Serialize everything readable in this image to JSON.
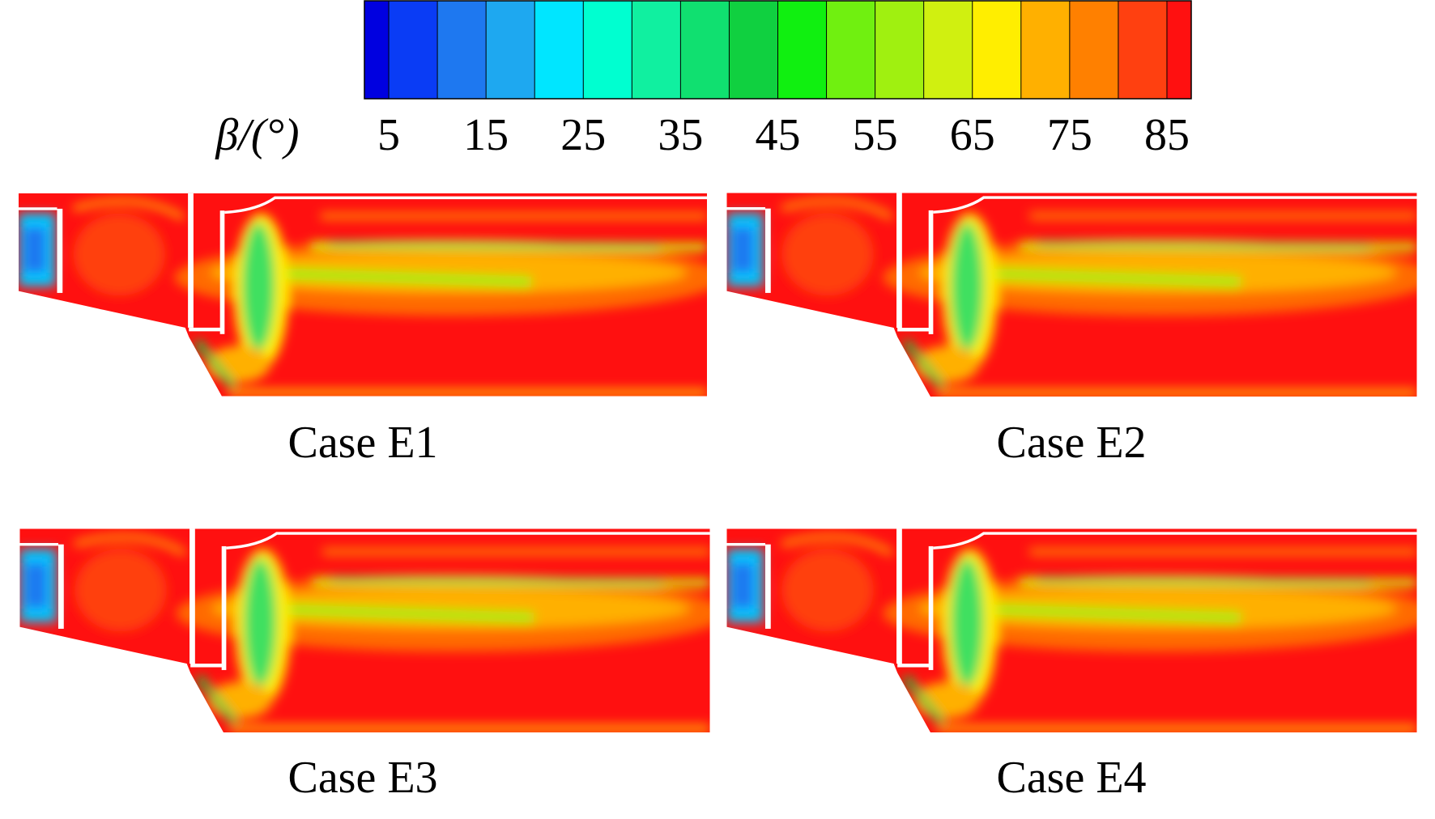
{
  "colorbar": {
    "label": "β/(°)",
    "lim": [
      2.5,
      87.5
    ],
    "ticks": [
      5,
      15,
      25,
      35,
      45,
      55,
      65,
      75,
      85
    ],
    "levels": [
      5,
      10,
      15,
      20,
      25,
      30,
      35,
      40,
      45,
      50,
      55,
      60,
      65,
      70,
      75,
      80,
      85
    ],
    "colors": [
      "#0000e0",
      "#0a3cf5",
      "#1e78f0",
      "#1ea8f0",
      "#00e6ff",
      "#00ffd0",
      "#10f0a0",
      "#10e070",
      "#10d040",
      "#10f010",
      "#70f010",
      "#a0f010",
      "#d0f010",
      "#ffee00",
      "#ffb000",
      "#ff8000",
      "#ff4010",
      "#ff1010"
    ]
  },
  "panels": [
    {
      "caption": "Case E1"
    },
    {
      "caption": "Case E2"
    },
    {
      "caption": "Case E3"
    },
    {
      "caption": "Case E4"
    }
  ]
}
